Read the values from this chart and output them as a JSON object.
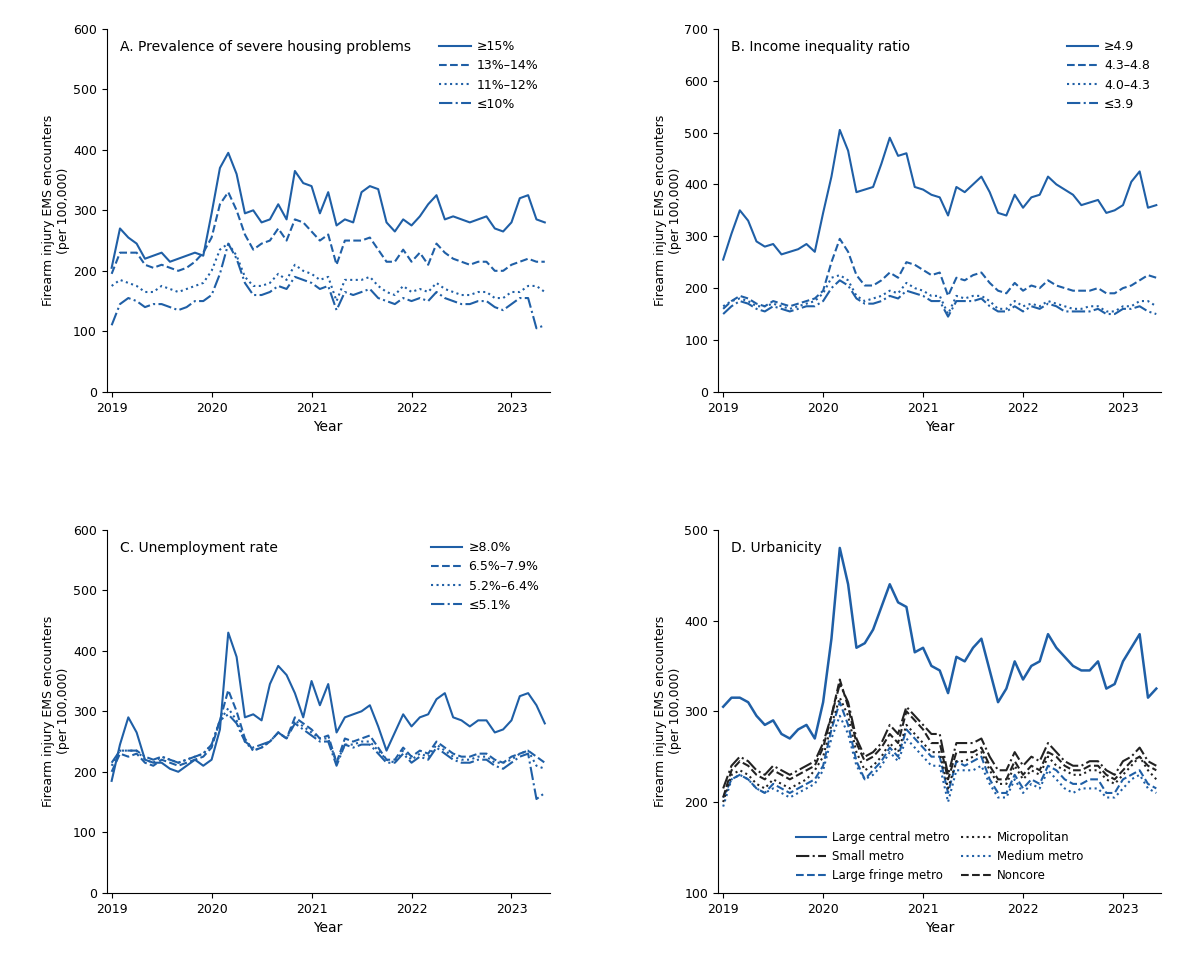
{
  "panel_A": {
    "title": "A. Prevalence of severe housing problems",
    "ylim": [
      0,
      600
    ],
    "yticks": [
      0,
      100,
      200,
      300,
      400,
      500,
      600
    ],
    "ylabel": "Firearm injury EMS encounters\n(per 100,000)",
    "xlabel": "Year",
    "legend_labels": [
      "≥15%",
      "13%–14%",
      "11%–12%",
      "≤10%"
    ],
    "line_styles": [
      "-",
      "--",
      ":",
      "-."
    ],
    "color": "#1f5fa6",
    "series": {
      "ge15": [
        205,
        270,
        255,
        245,
        220,
        225,
        230,
        215,
        220,
        225,
        230,
        225,
        295,
        370,
        395,
        360,
        295,
        300,
        280,
        285,
        310,
        285,
        365,
        345,
        340,
        295,
        330,
        275,
        285,
        280,
        330,
        340,
        335,
        280,
        265,
        285,
        275,
        290,
        310,
        325,
        285,
        290,
        285,
        280,
        285,
        290,
        270,
        265,
        280,
        320,
        325,
        285,
        280
      ],
      "r13_14": [
        195,
        230,
        230,
        230,
        210,
        205,
        210,
        205,
        200,
        205,
        215,
        230,
        255,
        310,
        330,
        300,
        260,
        235,
        245,
        250,
        270,
        250,
        285,
        280,
        265,
        250,
        260,
        210,
        250,
        250,
        250,
        255,
        235,
        215,
        215,
        235,
        215,
        230,
        210,
        245,
        230,
        220,
        215,
        210,
        215,
        215,
        200,
        200,
        210,
        215,
        220,
        215,
        215
      ],
      "r11_12": [
        175,
        185,
        180,
        175,
        165,
        165,
        175,
        170,
        165,
        170,
        175,
        180,
        200,
        235,
        245,
        225,
        190,
        175,
        175,
        180,
        195,
        185,
        210,
        200,
        195,
        185,
        190,
        150,
        185,
        185,
        185,
        190,
        175,
        165,
        160,
        175,
        165,
        170,
        165,
        180,
        170,
        165,
        160,
        160,
        165,
        165,
        155,
        155,
        165,
        165,
        175,
        175,
        165
      ],
      "le10": [
        110,
        145,
        155,
        150,
        140,
        145,
        145,
        140,
        135,
        140,
        150,
        150,
        160,
        195,
        245,
        220,
        180,
        160,
        160,
        165,
        175,
        170,
        190,
        185,
        180,
        170,
        175,
        135,
        165,
        160,
        165,
        170,
        155,
        150,
        145,
        155,
        150,
        155,
        150,
        165,
        155,
        150,
        145,
        145,
        150,
        150,
        140,
        135,
        145,
        155,
        155,
        105,
        110
      ]
    }
  },
  "panel_B": {
    "title": "B. Income inequality ratio",
    "ylim": [
      0,
      700
    ],
    "yticks": [
      0,
      100,
      200,
      300,
      400,
      500,
      600,
      700
    ],
    "ylabel": "Firearm injury EMS encounters\n(per 100,000)",
    "xlabel": "Year",
    "legend_labels": [
      "≥4.9",
      "4.3–4.8",
      "4.0–4.3",
      "≤3.9"
    ],
    "line_styles": [
      "-",
      "--",
      ":",
      "-."
    ],
    "color": "#1f5fa6",
    "series": {
      "ge49": [
        255,
        305,
        350,
        330,
        290,
        280,
        285,
        265,
        270,
        275,
        285,
        270,
        345,
        415,
        505,
        465,
        385,
        390,
        395,
        440,
        490,
        455,
        460,
        395,
        390,
        380,
        375,
        340,
        395,
        385,
        400,
        415,
        385,
        345,
        340,
        380,
        355,
        375,
        380,
        415,
        400,
        390,
        380,
        360,
        365,
        370,
        345,
        350,
        360,
        405,
        425,
        355,
        360
      ],
      "r43_48": [
        160,
        175,
        185,
        180,
        170,
        165,
        175,
        170,
        165,
        170,
        175,
        180,
        195,
        250,
        295,
        270,
        225,
        205,
        205,
        215,
        230,
        220,
        250,
        245,
        235,
        225,
        230,
        185,
        220,
        215,
        225,
        230,
        210,
        195,
        190,
        210,
        195,
        205,
        200,
        215,
        205,
        200,
        195,
        195,
        195,
        200,
        190,
        190,
        200,
        205,
        215,
        225,
        220
      ],
      "r40_43": [
        165,
        175,
        180,
        175,
        165,
        165,
        170,
        165,
        160,
        165,
        170,
        175,
        190,
        220,
        225,
        215,
        185,
        175,
        180,
        185,
        195,
        190,
        210,
        200,
        195,
        185,
        185,
        150,
        185,
        180,
        185,
        185,
        175,
        160,
        160,
        175,
        165,
        170,
        165,
        175,
        170,
        165,
        160,
        160,
        165,
        165,
        155,
        155,
        165,
        165,
        175,
        175,
        165
      ],
      "le39": [
        150,
        165,
        175,
        170,
        160,
        155,
        165,
        160,
        155,
        160,
        165,
        165,
        175,
        200,
        215,
        205,
        180,
        170,
        170,
        175,
        185,
        180,
        195,
        190,
        185,
        175,
        175,
        145,
        175,
        175,
        175,
        180,
        165,
        155,
        155,
        165,
        155,
        165,
        160,
        170,
        165,
        155,
        155,
        155,
        155,
        160,
        150,
        150,
        160,
        160,
        165,
        155,
        150
      ]
    }
  },
  "panel_C": {
    "title": "C. Unemployment rate",
    "ylim": [
      0,
      600
    ],
    "yticks": [
      0,
      100,
      200,
      300,
      400,
      500,
      600
    ],
    "ylabel": "Firearm injury EMS encounters\n(per 100,000)",
    "xlabel": "Year",
    "legend_labels": [
      "≥8.0%",
      "6.5%–7.9%",
      "5.2%–6.4%",
      "≤5.1%"
    ],
    "line_styles": [
      "-",
      "--",
      ":",
      "-."
    ],
    "color": "#1f5fa6",
    "series": {
      "ge80": [
        185,
        245,
        290,
        265,
        220,
        215,
        215,
        205,
        200,
        210,
        220,
        210,
        220,
        270,
        430,
        390,
        290,
        295,
        285,
        345,
        375,
        360,
        330,
        290,
        350,
        310,
        345,
        265,
        290,
        295,
        300,
        310,
        275,
        235,
        265,
        295,
        275,
        290,
        295,
        320,
        330,
        290,
        285,
        275,
        285,
        285,
        265,
        270,
        285,
        325,
        330,
        310,
        280
      ],
      "r65_79": [
        200,
        230,
        225,
        230,
        215,
        210,
        220,
        215,
        210,
        215,
        220,
        225,
        240,
        285,
        335,
        300,
        255,
        235,
        240,
        250,
        265,
        255,
        290,
        280,
        270,
        255,
        260,
        215,
        255,
        250,
        255,
        260,
        240,
        220,
        220,
        240,
        225,
        235,
        230,
        250,
        240,
        230,
        225,
        225,
        230,
        230,
        220,
        215,
        225,
        230,
        235,
        225,
        215
      ],
      "r52_64": [
        210,
        235,
        235,
        235,
        220,
        215,
        225,
        220,
        215,
        220,
        225,
        230,
        245,
        285,
        305,
        285,
        250,
        235,
        240,
        250,
        265,
        255,
        285,
        275,
        265,
        255,
        255,
        215,
        245,
        245,
        250,
        250,
        235,
        220,
        215,
        235,
        220,
        230,
        225,
        245,
        235,
        225,
        220,
        220,
        225,
        225,
        215,
        215,
        220,
        230,
        235,
        210,
        205
      ],
      "le51": [
        215,
        235,
        235,
        235,
        225,
        220,
        225,
        220,
        215,
        220,
        225,
        230,
        245,
        285,
        295,
        280,
        250,
        240,
        245,
        250,
        265,
        255,
        280,
        270,
        260,
        250,
        250,
        210,
        245,
        240,
        245,
        245,
        230,
        215,
        215,
        230,
        215,
        225,
        220,
        240,
        230,
        220,
        215,
        215,
        220,
        220,
        210,
        205,
        215,
        225,
        230,
        155,
        165
      ]
    }
  },
  "panel_D": {
    "title": "D. Urbanicity",
    "ylim": [
      100,
      500
    ],
    "yticks": [
      100,
      200,
      300,
      400,
      500
    ],
    "ylabel": "Firearm injury EMS encounters\n(per 100,000)",
    "xlabel": "Year",
    "legend_labels": [
      "Large central metro",
      "Large fringe metro",
      "Medium metro",
      "Small metro",
      "Micropolitan",
      "Noncore"
    ],
    "colors": [
      "#1f5fa6",
      "#1f5fa6",
      "#1f5fa6",
      "#222222",
      "#222222",
      "#222222"
    ],
    "series": {
      "large_central": [
        305,
        315,
        315,
        310,
        295,
        285,
        290,
        275,
        270,
        280,
        285,
        270,
        310,
        380,
        480,
        440,
        370,
        375,
        390,
        415,
        440,
        420,
        415,
        365,
        370,
        350,
        345,
        320,
        360,
        355,
        370,
        380,
        345,
        310,
        325,
        355,
        335,
        350,
        355,
        385,
        370,
        360,
        350,
        345,
        345,
        355,
        325,
        330,
        355,
        370,
        385,
        315,
        325
      ],
      "large_fringe": [
        205,
        225,
        230,
        225,
        215,
        210,
        220,
        215,
        210,
        215,
        220,
        225,
        240,
        280,
        310,
        285,
        245,
        225,
        235,
        245,
        260,
        250,
        280,
        270,
        260,
        250,
        250,
        210,
        245,
        240,
        245,
        250,
        225,
        210,
        210,
        230,
        215,
        225,
        220,
        240,
        235,
        225,
        220,
        220,
        225,
        225,
        210,
        210,
        225,
        230,
        235,
        220,
        215
      ],
      "medium": [
        195,
        225,
        230,
        225,
        215,
        210,
        215,
        210,
        205,
        210,
        215,
        220,
        235,
        270,
        295,
        275,
        240,
        225,
        230,
        240,
        255,
        245,
        270,
        260,
        250,
        240,
        240,
        200,
        235,
        235,
        235,
        240,
        220,
        205,
        205,
        225,
        210,
        220,
        215,
        235,
        225,
        215,
        210,
        215,
        215,
        215,
        205,
        205,
        215,
        225,
        230,
        215,
        210
      ],
      "small": [
        215,
        240,
        250,
        245,
        235,
        230,
        240,
        235,
        230,
        235,
        240,
        245,
        265,
        295,
        330,
        310,
        270,
        250,
        255,
        265,
        285,
        275,
        305,
        295,
        285,
        275,
        275,
        230,
        265,
        265,
        265,
        270,
        250,
        235,
        235,
        255,
        240,
        250,
        245,
        265,
        255,
        245,
        240,
        240,
        245,
        245,
        235,
        230,
        245,
        250,
        260,
        245,
        240
      ],
      "micropolitan": [
        200,
        230,
        235,
        230,
        220,
        215,
        225,
        220,
        215,
        220,
        225,
        235,
        250,
        285,
        315,
        295,
        255,
        235,
        240,
        250,
        265,
        255,
        285,
        275,
        265,
        255,
        255,
        215,
        245,
        245,
        250,
        255,
        235,
        220,
        220,
        240,
        225,
        235,
        230,
        250,
        240,
        235,
        230,
        230,
        235,
        235,
        225,
        220,
        230,
        240,
        250,
        235,
        225
      ],
      "noncore": [
        205,
        235,
        245,
        240,
        230,
        225,
        235,
        230,
        225,
        230,
        235,
        240,
        260,
        295,
        335,
        305,
        265,
        245,
        250,
        260,
        275,
        265,
        300,
        290,
        280,
        265,
        265,
        225,
        255,
        255,
        255,
        260,
        240,
        225,
        225,
        245,
        230,
        240,
        235,
        255,
        250,
        240,
        235,
        235,
        240,
        240,
        230,
        225,
        235,
        245,
        250,
        240,
        235
      ]
    }
  },
  "n_points": 53,
  "xtick_years": [
    2019,
    2020,
    2021,
    2022,
    2023
  ],
  "blue_color": "#1f5fa6",
  "black_color": "#222222"
}
